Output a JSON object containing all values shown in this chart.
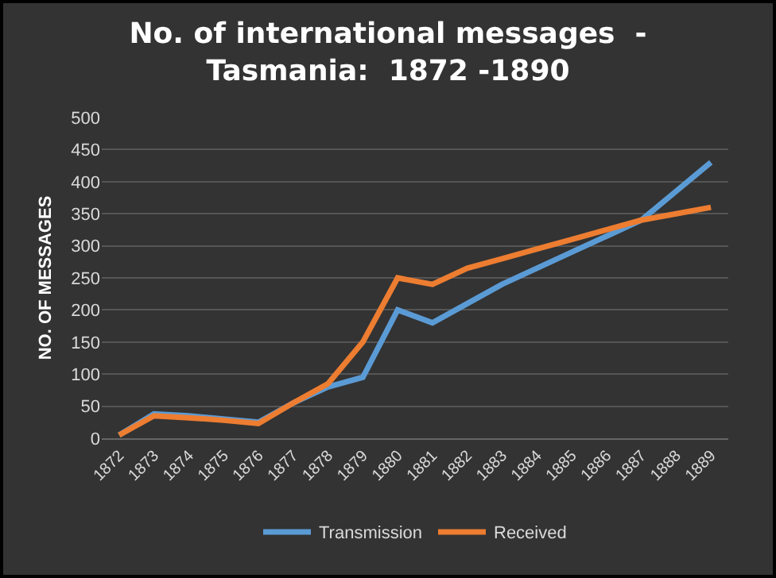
{
  "chart_data": {
    "type": "line",
    "title": "No. of international messages  -\nTasmania:  1872 -1890",
    "ylabel": "NO. OF MESSAGES",
    "categories": [
      "1872",
      "1873",
      "1874",
      "1875",
      "1876",
      "1877",
      "1878",
      "1879",
      "1880",
      "1881",
      "1882",
      "1883",
      "1884",
      "1885",
      "1886",
      "1887",
      "1888",
      "1889"
    ],
    "series": [
      {
        "name": "Transmission",
        "color": "#5b9bd5",
        "values": [
          5,
          38,
          35,
          30,
          25,
          55,
          80,
          95,
          200,
          180,
          210,
          240,
          265,
          290,
          315,
          340,
          385,
          430
        ]
      },
      {
        "name": "Received",
        "color": "#ed7d31",
        "values": [
          5,
          35,
          32,
          28,
          23,
          55,
          85,
          150,
          250,
          240,
          265,
          280,
          295,
          310,
          325,
          340,
          350,
          360
        ]
      }
    ],
    "ylim": [
      0,
      500
    ],
    "yticks": [
      0,
      50,
      100,
      150,
      200,
      250,
      300,
      350,
      400,
      450,
      500
    ],
    "grid": "y",
    "legend": "bottom",
    "marker": "none",
    "line_style": "solid"
  }
}
